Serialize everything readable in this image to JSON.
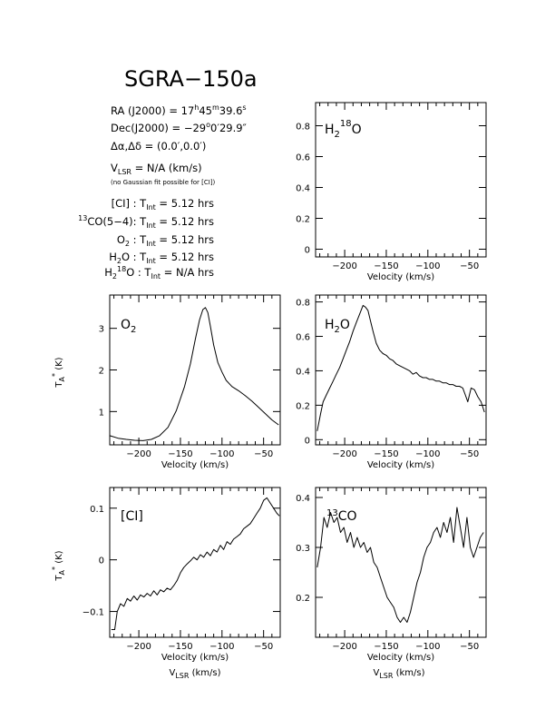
{
  "title": "SGRA−150a",
  "info": {
    "ra": "RA (J2000) =  17h45m39.6s",
    "dec": "Dec(J2000) = −29°0′29.9″",
    "offset": "Δα,Δδ = (0.0′,0.0′)",
    "vlsr": "VLSR  = N/A  (km/s)",
    "note": "(no Gaussian fit possible for [CI])",
    "tint": [
      "[CI] : Tint = 5.12 hrs",
      "13CO(5−4): Tint = 5.12 hrs",
      "O2 : Tint = 5.12 hrs",
      "H2O : Tint = 5.12 hrs",
      "H218O : Tint = N/A hrs"
    ]
  },
  "chart_data": [
    {
      "type": "line",
      "panel": "H2 18O",
      "label": "H218O",
      "xlabel": "Velocity (km/s)",
      "xlim": [
        -235,
        -30
      ],
      "ylim": [
        -0.05,
        0.95
      ],
      "xticks": [
        -200,
        -150,
        -100,
        -50
      ],
      "yticks": [
        0,
        0.2,
        0.4,
        0.6,
        0.8
      ],
      "ytick_labels": [
        "0",
        "0.2",
        "0.4",
        "0.6",
        "0.8"
      ],
      "x": [],
      "y": []
    },
    {
      "type": "line",
      "panel": "O2",
      "label": "O2",
      "xlabel": "Velocity (km/s)",
      "ylabel": "TA* (K)",
      "xlim": [
        -235,
        -30
      ],
      "ylim": [
        0.2,
        3.8
      ],
      "xticks": [
        -200,
        -150,
        -100,
        -50
      ],
      "yticks": [
        1,
        2,
        3
      ],
      "ytick_labels": [
        "1",
        "2",
        "3"
      ],
      "x": [
        -235,
        -225,
        -215,
        -205,
        -195,
        -185,
        -175,
        -165,
        -155,
        -145,
        -138,
        -132,
        -127,
        -123,
        -120,
        -117,
        -114,
        -110,
        -105,
        -100,
        -95,
        -88,
        -80,
        -72,
        -64,
        -56,
        -48,
        -40,
        -32
      ],
      "y": [
        0.42,
        0.36,
        0.33,
        0.31,
        0.3,
        0.33,
        0.42,
        0.62,
        1.02,
        1.6,
        2.15,
        2.75,
        3.2,
        3.45,
        3.5,
        3.38,
        3.05,
        2.6,
        2.18,
        1.95,
        1.75,
        1.6,
        1.5,
        1.38,
        1.25,
        1.1,
        0.95,
        0.8,
        0.68
      ]
    },
    {
      "type": "line",
      "panel": "H2O",
      "label": "H2O",
      "xlabel": "Velocity (km/s)",
      "xlim": [
        -235,
        -30
      ],
      "ylim": [
        -0.03,
        0.84
      ],
      "xticks": [
        -200,
        -150,
        -100,
        -50
      ],
      "yticks": [
        0,
        0.2,
        0.4,
        0.6,
        0.8
      ],
      "ytick_labels": [
        "0",
        "0.2",
        "0.4",
        "0.6",
        "0.8"
      ],
      "x": [
        -233,
        -229,
        -226,
        -222,
        -218,
        -214,
        -210,
        -206,
        -202,
        -198,
        -194,
        -190,
        -186,
        -182,
        -178,
        -175,
        -172,
        -169,
        -166,
        -162,
        -158,
        -154,
        -150,
        -146,
        -142,
        -138,
        -134,
        -130,
        -126,
        -122,
        -118,
        -114,
        -110,
        -106,
        -102,
        -98,
        -94,
        -90,
        -86,
        -82,
        -78,
        -74,
        -70,
        -66,
        -62,
        -58,
        -55,
        -52,
        -48,
        -44,
        -40,
        -36,
        -32
      ],
      "y": [
        0.05,
        0.15,
        0.22,
        0.26,
        0.3,
        0.34,
        0.38,
        0.42,
        0.47,
        0.52,
        0.57,
        0.63,
        0.68,
        0.73,
        0.78,
        0.77,
        0.75,
        0.69,
        0.63,
        0.56,
        0.52,
        0.5,
        0.49,
        0.47,
        0.46,
        0.44,
        0.43,
        0.42,
        0.41,
        0.4,
        0.38,
        0.39,
        0.37,
        0.36,
        0.36,
        0.35,
        0.35,
        0.34,
        0.34,
        0.33,
        0.33,
        0.32,
        0.32,
        0.31,
        0.31,
        0.3,
        0.26,
        0.22,
        0.3,
        0.29,
        0.25,
        0.22,
        0.16
      ]
    },
    {
      "type": "line",
      "panel": "CI",
      "label": "[CI]",
      "ylabel": "TA* (K)",
      "xlabel": "Velocity (km/s)",
      "xlabel2": "VLSR (km/s)",
      "xlim": [
        -235,
        -30
      ],
      "ylim": [
        -0.15,
        0.14
      ],
      "xticks": [
        -200,
        -150,
        -100,
        -50
      ],
      "yticks": [
        -0.1,
        0,
        0.1
      ],
      "ytick_labels": [
        "−0.1",
        "0",
        "0.1"
      ],
      "x": [
        -233,
        -229,
        -226,
        -222,
        -218,
        -214,
        -210,
        -206,
        -202,
        -198,
        -194,
        -190,
        -186,
        -182,
        -178,
        -174,
        -170,
        -166,
        -162,
        -158,
        -154,
        -150,
        -146,
        -142,
        -138,
        -134,
        -130,
        -126,
        -122,
        -118,
        -114,
        -110,
        -106,
        -102,
        -98,
        -94,
        -90,
        -86,
        -82,
        -78,
        -74,
        -70,
        -66,
        -62,
        -58,
        -54,
        -50,
        -46,
        -42,
        -38,
        -34,
        -31
      ],
      "y": [
        -0.135,
        -0.135,
        -0.1,
        -0.085,
        -0.09,
        -0.075,
        -0.08,
        -0.07,
        -0.078,
        -0.068,
        -0.072,
        -0.065,
        -0.07,
        -0.06,
        -0.068,
        -0.058,
        -0.062,
        -0.055,
        -0.058,
        -0.05,
        -0.04,
        -0.025,
        -0.015,
        -0.008,
        -0.002,
        0.005,
        0.0,
        0.01,
        0.005,
        0.015,
        0.008,
        0.02,
        0.015,
        0.028,
        0.02,
        0.035,
        0.03,
        0.04,
        0.045,
        0.05,
        0.06,
        0.065,
        0.07,
        0.08,
        0.09,
        0.1,
        0.115,
        0.12,
        0.11,
        0.1,
        0.09,
        0.085
      ]
    },
    {
      "type": "line",
      "panel": "13CO",
      "label": "13CO",
      "xlabel": "Velocity (km/s)",
      "xlabel2": "VLSR (km/s)",
      "xlim": [
        -235,
        -30
      ],
      "ylim": [
        0.12,
        0.42
      ],
      "xticks": [
        -200,
        -150,
        -100,
        -50
      ],
      "yticks": [
        0.2,
        0.3,
        0.4
      ],
      "ytick_labels": [
        "0.2",
        "0.3",
        "0.4"
      ],
      "x": [
        -233,
        -229,
        -225,
        -221,
        -217,
        -213,
        -209,
        -205,
        -201,
        -197,
        -193,
        -189,
        -185,
        -181,
        -177,
        -173,
        -169,
        -165,
        -161,
        -157,
        -153,
        -149,
        -145,
        -141,
        -137,
        -133,
        -129,
        -125,
        -121,
        -117,
        -113,
        -109,
        -105,
        -101,
        -97,
        -93,
        -89,
        -85,
        -81,
        -77,
        -73,
        -69,
        -65,
        -61,
        -57,
        -53,
        -49,
        -45,
        -41,
        -37,
        -33
      ],
      "y": [
        0.26,
        0.3,
        0.36,
        0.34,
        0.37,
        0.35,
        0.36,
        0.33,
        0.34,
        0.31,
        0.33,
        0.3,
        0.32,
        0.3,
        0.31,
        0.29,
        0.3,
        0.27,
        0.26,
        0.24,
        0.22,
        0.2,
        0.19,
        0.18,
        0.16,
        0.15,
        0.16,
        0.15,
        0.17,
        0.2,
        0.23,
        0.25,
        0.28,
        0.3,
        0.31,
        0.33,
        0.34,
        0.32,
        0.35,
        0.33,
        0.36,
        0.31,
        0.38,
        0.34,
        0.3,
        0.36,
        0.3,
        0.28,
        0.3,
        0.32,
        0.33
      ]
    }
  ]
}
